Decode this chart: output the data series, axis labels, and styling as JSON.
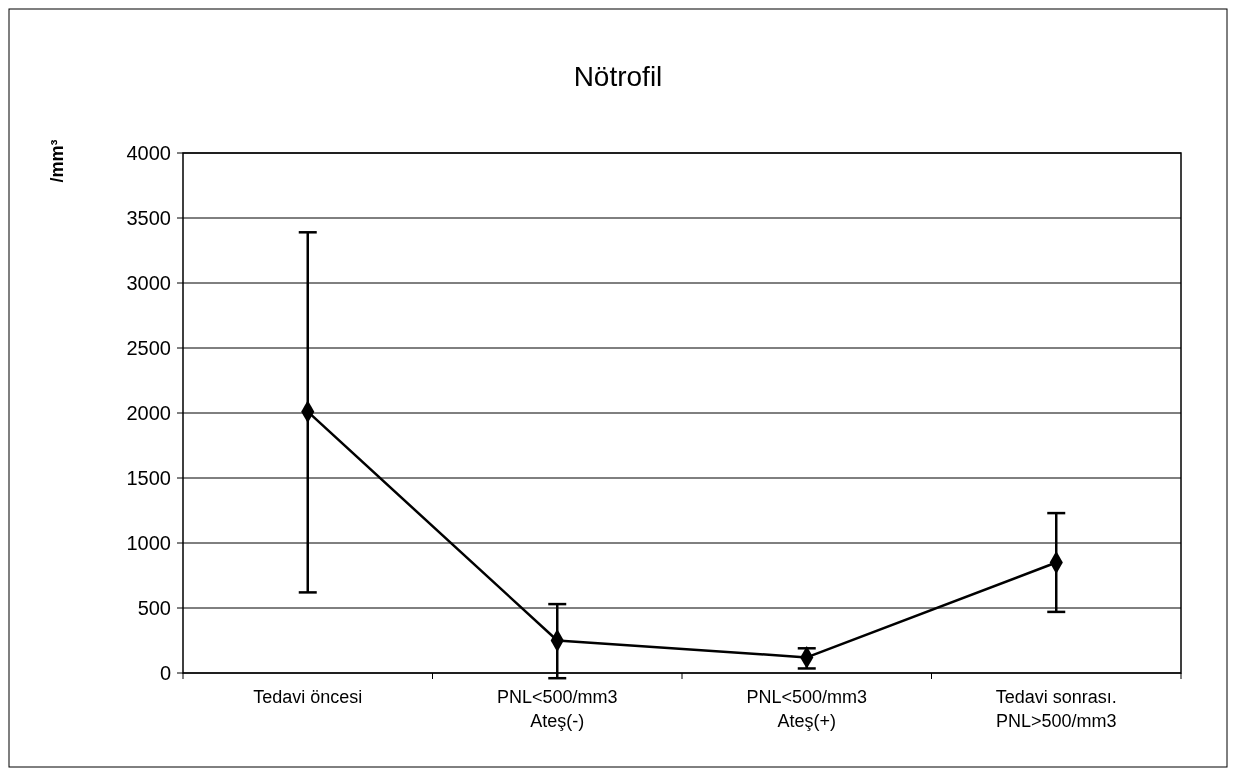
{
  "chart_data": {
    "type": "line",
    "title": "Nötrofil",
    "ylabel": "/mm³",
    "categories": [
      "Tedavi öncesi",
      "PNL<500/mm3\nAteş(-)",
      "PNL<500/mm3\nAteş(+)",
      "Tedavi sonrası.\nPNL>500/mm3"
    ],
    "series": [
      {
        "color": "#000000",
        "values": [
          2010,
          250,
          120,
          850
        ],
        "errors": [
          [
            620,
            3390
          ],
          [
            -40,
            530
          ],
          [
            35,
            190
          ],
          [
            470,
            1230
          ]
        ]
      }
    ],
    "ylim": [
      0,
      4000
    ],
    "yticks": [
      0,
      500,
      1000,
      1500,
      2000,
      2500,
      3000,
      3500,
      4000
    ],
    "grid": "y",
    "marker": "diamond",
    "line_style": "solid"
  }
}
